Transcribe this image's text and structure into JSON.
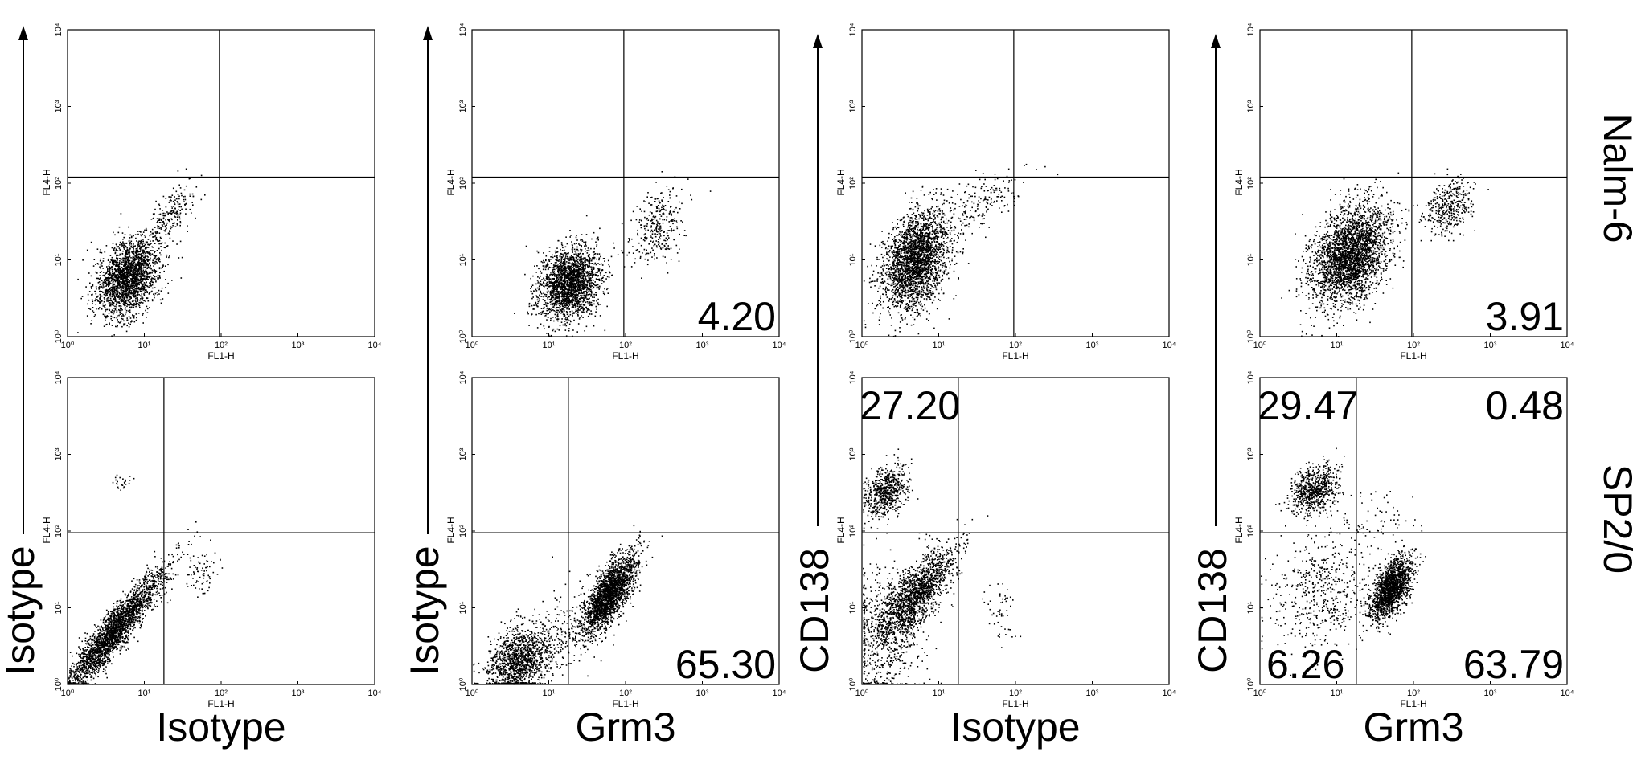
{
  "chart_data": {
    "type": "scatter",
    "scale": "log",
    "xlim": [
      1,
      10000
    ],
    "ylim": [
      1,
      10000
    ],
    "tick_labels": [
      "10⁰",
      "10¹",
      "10²",
      "10³",
      "10⁴"
    ],
    "detector_x": "FL1-H",
    "detector_y": "FL4-H",
    "rows": [
      "Nalm-6",
      "SP2/0"
    ],
    "columns": [
      {
        "x_marker": "Isotype",
        "y_marker": "Isotype"
      },
      {
        "x_marker": "Grm3",
        "y_marker": "Isotype"
      },
      {
        "x_marker": "Isotype",
        "y_marker": "CD138"
      },
      {
        "x_marker": "Grm3",
        "y_marker": "CD138"
      }
    ],
    "panels": [
      {
        "id": "nalm6-isotype-isotype",
        "row": 0,
        "col": 0,
        "gate": [
          95,
          120
        ],
        "quadrant_values": {
          "tl": "",
          "tr": "",
          "bl": "",
          "br": ""
        },
        "populations": [
          {
            "cx": 6,
            "cy": 6,
            "sx": 0.2,
            "sy": 0.25,
            "rho": 0.35,
            "n": 2200
          },
          {
            "cx": 22,
            "cy": 40,
            "sx": 0.16,
            "sy": 0.22,
            "rho": 0.7,
            "n": 220
          }
        ]
      },
      {
        "id": "nalm6-grm3-isotype",
        "row": 0,
        "col": 1,
        "gate": [
          95,
          120
        ],
        "quadrant_values": {
          "tl": "",
          "tr": "",
          "bl": "",
          "br": "4.20"
        },
        "populations": [
          {
            "cx": 18,
            "cy": 5,
            "sx": 0.2,
            "sy": 0.24,
            "rho": 0.2,
            "n": 2200
          },
          {
            "cx": 250,
            "cy": 28,
            "sx": 0.18,
            "sy": 0.25,
            "rho": 0.4,
            "n": 320
          }
        ]
      },
      {
        "id": "nalm6-isotype-cd138",
        "row": 0,
        "col": 2,
        "gate": [
          95,
          120
        ],
        "quadrant_values": {
          "tl": "",
          "tr": "",
          "bl": "",
          "br": ""
        },
        "populations": [
          {
            "cx": 5,
            "cy": 10,
            "sx": 0.22,
            "sy": 0.33,
            "rho": 0.35,
            "n": 2600
          },
          {
            "cx": 40,
            "cy": 60,
            "sx": 0.3,
            "sy": 0.2,
            "rho": 0.6,
            "n": 180
          }
        ]
      },
      {
        "id": "nalm6-grm3-cd138",
        "row": 0,
        "col": 3,
        "gate": [
          95,
          120
        ],
        "quadrant_values": {
          "tl": "",
          "tr": "",
          "bl": "",
          "br": "3.91"
        },
        "populations": [
          {
            "cx": 15,
            "cy": 12,
            "sx": 0.25,
            "sy": 0.33,
            "rho": 0.35,
            "n": 3000
          },
          {
            "cx": 280,
            "cy": 50,
            "sx": 0.15,
            "sy": 0.18,
            "rho": 0.3,
            "n": 380
          }
        ]
      },
      {
        "id": "sp20-isotype-isotype",
        "row": 1,
        "col": 0,
        "gate": [
          18,
          95
        ],
        "quadrant_values": {
          "tl": "",
          "tr": "",
          "bl": "",
          "br": ""
        },
        "populations": [
          {
            "cx": 4,
            "cy": 5,
            "sx": 0.32,
            "sy": 0.4,
            "rho": 0.93,
            "n": 2600
          },
          {
            "cx": 55,
            "cy": 28,
            "sx": 0.1,
            "sy": 0.15,
            "rho": 0.2,
            "n": 70
          },
          {
            "cx": 5,
            "cy": 450,
            "sx": 0.06,
            "sy": 0.05,
            "rho": 0.0,
            "n": 25
          }
        ]
      },
      {
        "id": "sp20-grm3-isotype",
        "row": 1,
        "col": 1,
        "gate": [
          18,
          95
        ],
        "quadrant_values": {
          "tl": "",
          "tr": "",
          "bl": "",
          "br": "65.30"
        },
        "populations": [
          {
            "cx": 4,
            "cy": 2,
            "sx": 0.2,
            "sy": 0.22,
            "rho": 0.3,
            "n": 1300
          },
          {
            "cx": 60,
            "cy": 15,
            "sx": 0.17,
            "sy": 0.26,
            "rho": 0.72,
            "n": 2200
          },
          {
            "cx": 15,
            "cy": 5,
            "sx": 0.3,
            "sy": 0.3,
            "rho": 0.5,
            "n": 250
          }
        ]
      },
      {
        "id": "sp20-isotype-cd138",
        "row": 1,
        "col": 2,
        "gate": [
          18,
          95
        ],
        "quadrant_values": {
          "tl": "27.20",
          "tr": "",
          "bl": "",
          "br": ""
        },
        "populations": [
          {
            "cx": 2,
            "cy": 330,
            "sx": 0.14,
            "sy": 0.16,
            "rho": 0.3,
            "n": 650
          },
          {
            "cx": 5,
            "cy": 15,
            "sx": 0.25,
            "sy": 0.3,
            "rho": 0.75,
            "n": 1600
          },
          {
            "cx": 2,
            "cy": 5,
            "sx": 0.25,
            "sy": 0.45,
            "rho": 0.1,
            "n": 650
          },
          {
            "cx": 60,
            "cy": 10,
            "sx": 0.1,
            "sy": 0.25,
            "rho": 0.0,
            "n": 50
          }
        ]
      },
      {
        "id": "sp20-grm3-cd138",
        "row": 1,
        "col": 3,
        "gate": [
          18,
          95
        ],
        "quadrant_values": {
          "tl": "29.47",
          "tr": "0.48",
          "bl": "6.26",
          "br": "63.79"
        },
        "populations": [
          {
            "cx": 5,
            "cy": 350,
            "sx": 0.15,
            "sy": 0.16,
            "rho": 0.3,
            "n": 700
          },
          {
            "cx": 50,
            "cy": 18,
            "sx": 0.13,
            "sy": 0.2,
            "rho": 0.55,
            "n": 1700
          },
          {
            "cx": 6,
            "cy": 15,
            "sx": 0.3,
            "sy": 0.4,
            "rho": 0.1,
            "n": 500
          },
          {
            "cx": 25,
            "cy": 130,
            "sx": 0.3,
            "sy": 0.2,
            "rho": 0.0,
            "n": 90
          }
        ]
      }
    ]
  }
}
